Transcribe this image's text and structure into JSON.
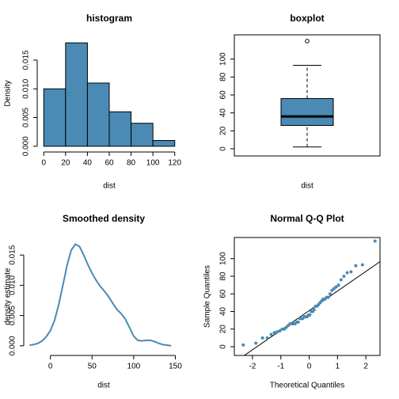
{
  "chart_data": [
    {
      "type": "histogram",
      "title": "histogram",
      "xlabel": "dist",
      "ylabel": "Density",
      "bins": [
        0,
        20,
        40,
        60,
        80,
        100,
        120
      ],
      "values": [
        0.01,
        0.018,
        0.011,
        0.006,
        0.004,
        0.001
      ],
      "color": "#4A8AB4",
      "xlim": [
        -6,
        126
      ],
      "ylim": [
        -0.001,
        0.0194
      ],
      "xticks": [
        0,
        20,
        40,
        60,
        80,
        100,
        120
      ],
      "yticks": [
        {
          "value": 0,
          "label": "0.000"
        },
        {
          "value": 0.005,
          "label": "0.005"
        },
        {
          "value": 0.01,
          "label": "0.010"
        },
        {
          "value": 0.015,
          "label": "0.015"
        }
      ]
    },
    {
      "type": "box",
      "title": "boxplot",
      "xlabel": "dist",
      "stats": {
        "min": 2,
        "q1": 26,
        "median": 36,
        "q3": 56,
        "max": 93
      },
      "outliers": [
        120
      ],
      "color": "#4A8AB4",
      "ylim": [
        -8,
        127
      ],
      "yticks": [
        0,
        20,
        40,
        60,
        80,
        100
      ]
    },
    {
      "type": "line",
      "title": "Smoothed density",
      "xlabel": "dist",
      "ylabel": "density estimate",
      "x": [
        -25,
        -20,
        -15,
        -10,
        -5,
        0,
        5,
        10,
        15,
        20,
        25,
        30,
        35,
        40,
        45,
        50,
        55,
        60,
        65,
        70,
        75,
        80,
        85,
        90,
        95,
        100,
        105,
        110,
        115,
        120,
        125,
        130,
        135,
        140,
        145
      ],
      "values": [
        0.0001,
        0.0002,
        0.0004,
        0.0008,
        0.0015,
        0.0025,
        0.0042,
        0.0068,
        0.01,
        0.0133,
        0.0158,
        0.0168,
        0.0164,
        0.015,
        0.0134,
        0.012,
        0.0108,
        0.0098,
        0.009,
        0.0081,
        0.007,
        0.006,
        0.0053,
        0.0044,
        0.003,
        0.0016,
        0.0009,
        0.0008,
        0.0009,
        0.0009,
        0.0007,
        0.0004,
        0.0002,
        0.0001,
        0.0
      ],
      "color": "#4A8AB4",
      "xlim": [
        -32,
        160
      ],
      "ylim": [
        -0.0016,
        0.0179
      ],
      "xticks": [
        0,
        50,
        100,
        150
      ],
      "yticks": [
        {
          "value": 0,
          "label": "0.000"
        },
        {
          "value": 0.005,
          "label": "0.005"
        },
        {
          "value": 0.01,
          "label": "0.010"
        },
        {
          "value": 0.015,
          "label": "0.015"
        }
      ]
    },
    {
      "type": "scatter",
      "title": "Normal Q-Q Plot",
      "xlabel": "Theoretical Quantiles",
      "ylabel": "Sample Quantiles",
      "x": [
        -2.326,
        -1.881,
        -1.645,
        -1.476,
        -1.341,
        -1.227,
        -1.126,
        -1.036,
        -0.954,
        -0.878,
        -0.806,
        -0.739,
        -0.674,
        -0.613,
        -0.553,
        -0.496,
        -0.44,
        -0.385,
        -0.332,
        -0.279,
        -0.228,
        -0.176,
        -0.126,
        -0.075,
        -0.025,
        0.025,
        0.075,
        0.126,
        0.176,
        0.228,
        0.279,
        0.332,
        0.385,
        0.44,
        0.496,
        0.553,
        0.613,
        0.674,
        0.739,
        0.806,
        0.878,
        0.954,
        1.036,
        1.126,
        1.227,
        1.341,
        1.476,
        1.645,
        1.881,
        2.326
      ],
      "values": [
        2,
        4,
        10,
        10,
        14,
        16,
        17,
        18,
        20,
        20,
        22,
        24,
        26,
        26,
        26,
        26,
        28,
        28,
        32,
        32,
        32,
        34,
        34,
        34,
        36,
        36,
        40,
        40,
        42,
        46,
        46,
        48,
        50,
        52,
        54,
        54,
        56,
        56,
        60,
        64,
        66,
        68,
        70,
        76,
        80,
        84,
        85,
        92,
        93,
        120
      ],
      "reference_line": {
        "intercept": 41,
        "slope": 22.24
      },
      "color": "#4A8AB4",
      "xlim": [
        -2.64,
        2.5
      ],
      "ylim": [
        -9.9,
        124
      ],
      "xticks": [
        -2,
        -1,
        0,
        1,
        2
      ],
      "yticks": [
        0,
        20,
        40,
        60,
        80,
        100
      ]
    }
  ]
}
